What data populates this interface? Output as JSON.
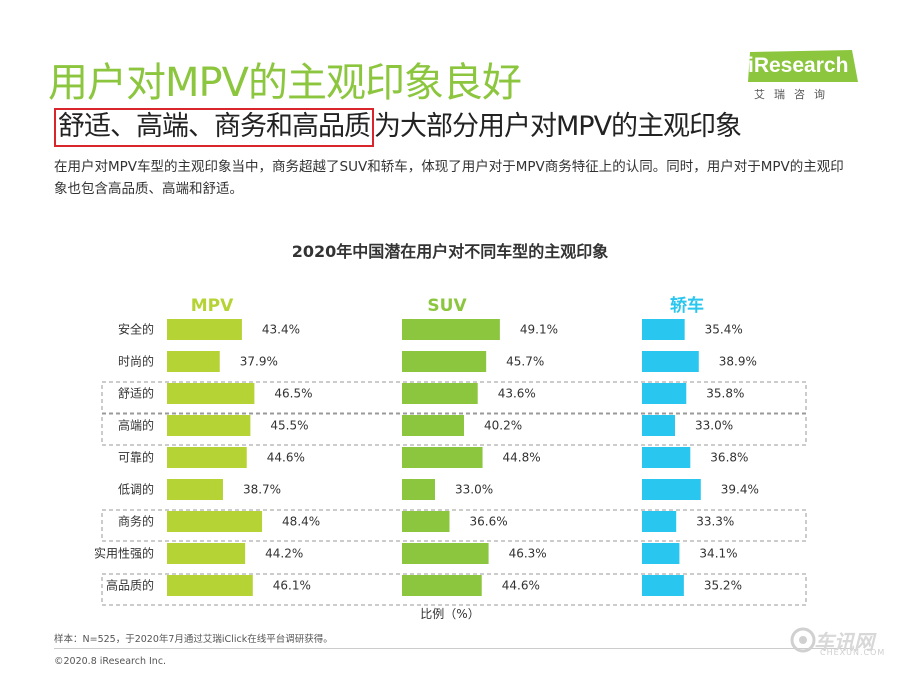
{
  "page": {
    "title": "用户对MPV的主观印象良好",
    "subtitle_highlight": "舒适、高端、商务和高品质",
    "subtitle_rest": "为大部分用户对MPV的主观印象",
    "description": "在用户对MPV车型的主观印象当中，商务超越了SUV和轿车，体现了用户对于MPV商务特征上的认同。同时，用户对于MPV的主观印象也包含高品质、高端和舒适。",
    "source_note": "样本：N=525，于2020年7月通过艾瑞iClick在线平台调研获得。",
    "copyright": "©2020.8 iResearch Inc."
  },
  "logo": {
    "brand": "iResearch",
    "chinese": "艾瑞咨询"
  },
  "watermark": {
    "text": "车讯网",
    "sub": "CHEXUN.COM"
  },
  "colors": {
    "title_green": "#8cc63f",
    "mpv": "#b5d334",
    "suv": "#8cc63f",
    "sedan": "#29c6ef",
    "highlight_box": "#d9252c"
  },
  "chart_data": {
    "type": "bar",
    "orientation": "horizontal",
    "title": "2020年中国潜在用户对不同车型的主观印象",
    "xlabel": "比例（%）",
    "categories": [
      "安全的",
      "时尚的",
      "舒适的",
      "高端的",
      "可靠的",
      "低调的",
      "商务的",
      "实用性强的",
      "高品质的"
    ],
    "highlighted_categories": [
      "舒适的",
      "高端的",
      "商务的",
      "高品质的"
    ],
    "unit": "%",
    "series": [
      {
        "name": "MPV",
        "color": "#b5d334",
        "values": [
          43.4,
          37.9,
          46.5,
          45.5,
          44.6,
          38.7,
          48.4,
          44.2,
          46.1
        ]
      },
      {
        "name": "SUV",
        "color": "#8cc63f",
        "values": [
          49.1,
          45.7,
          43.6,
          40.2,
          44.8,
          33.0,
          36.6,
          46.3,
          44.6
        ]
      },
      {
        "name": "轿车",
        "color": "#29c6ef",
        "values": [
          35.4,
          38.9,
          35.8,
          33.0,
          36.8,
          39.4,
          33.3,
          34.1,
          35.2
        ]
      }
    ]
  }
}
